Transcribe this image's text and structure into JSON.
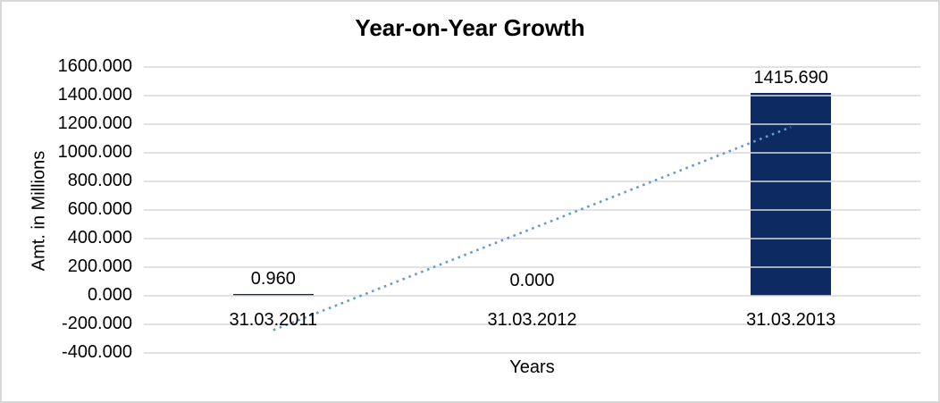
{
  "chart_data": {
    "type": "bar",
    "title": "Year-on-Year Growth",
    "xlabel": "Years",
    "ylabel": "Amt. in Millions",
    "categories": [
      "31.03.2011",
      "31.03.2012",
      "31.03.2013"
    ],
    "values": [
      0.96,
      0,
      1415.69
    ],
    "value_labels": [
      "0.960",
      "0.000",
      "1415.690"
    ],
    "ylim": [
      -400,
      1600
    ],
    "ytick_step": 200,
    "ytick_labels": [
      "1600.000",
      "1400.000",
      "1200.000",
      "1000.000",
      "800.000",
      "600.000",
      "400.000",
      "200.000",
      "0.000",
      "-200.000",
      "-400.000"
    ],
    "grid": true,
    "legend": "none",
    "colors": {
      "bar": "#0e2a62",
      "trendline": "#6399d6",
      "gridline": "#d9d9d9",
      "text": "#000000",
      "border": "#d8d8d8"
    },
    "trendline": {
      "style": "dotted",
      "start_category": "31.03.2011",
      "end_category": "31.03.2013",
      "start_value": -240,
      "end_value": 1180
    }
  }
}
